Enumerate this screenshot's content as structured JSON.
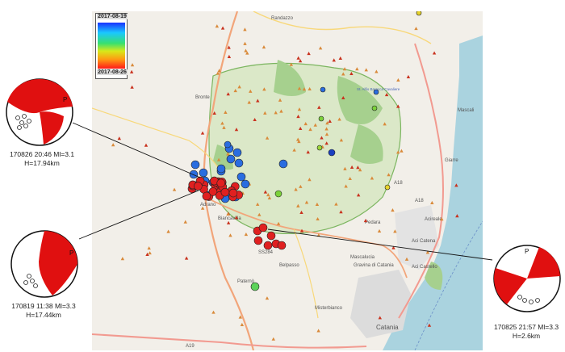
{
  "legend": {
    "start_date": "2017-08-19",
    "end_date": "2017-08-26"
  },
  "events": [
    {
      "id": "e1",
      "line1": "170826  20:46  Ml=3.1",
      "line2": "H=17.94km"
    },
    {
      "id": "e2",
      "line1": "170819  11:38  Ml=3.3",
      "line2": "H=17.44km"
    },
    {
      "id": "e3",
      "line1": "170825  21:57  Ml=3.3",
      "line2": "H=2.6km"
    }
  ],
  "beachball_marker": "P",
  "place_labels": {
    "randazzo": "Randazzo",
    "bronte": "Bronte",
    "adrano": "Adrano",
    "biancavilla": "Biancavilla",
    "belpasso": "Belpasso",
    "paterno": "Paternò",
    "mascali": "Mascali",
    "giarre": "Giarre",
    "pedara": "Pedara",
    "acireale": "Acireale",
    "aci_catena": "Aci Catena",
    "mascalucia": "Mascalucia",
    "gravina": "Gravina di\nCatania",
    "aci_castello": "Aci Castello",
    "misterbianco": "Misterbianco",
    "catania": "Catania",
    "ss284": "SS284",
    "a18_1": "A18",
    "a18_2": "A18",
    "a19": "A19",
    "sant_alfio": "St. Alfio\nBaracca\nCavaliere"
  },
  "colors": {
    "land": "#f2efe9",
    "park": "#cfe3b4",
    "forest": "#9fcf8a",
    "sea": "#aad3df",
    "road_major": "#f2a57a",
    "road_minor": "#f8d87a",
    "city": "#dcdcdc",
    "quake_blue": "#2a6de0",
    "quake_red": "#e02020",
    "station_triangle": "#c9321e"
  }
}
